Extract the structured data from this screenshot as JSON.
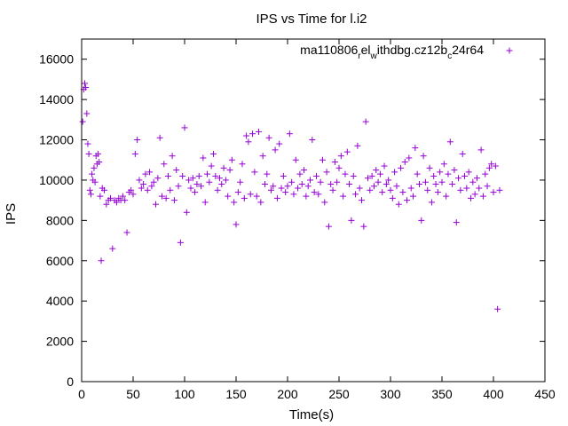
{
  "chart_data": {
    "type": "scatter",
    "title": "IPS vs Time for l.i2",
    "xlabel": "Time(s)",
    "ylabel": "IPS",
    "xlim": [
      0,
      450
    ],
    "ylim": [
      0,
      17000
    ],
    "x_ticks": [
      0,
      50,
      100,
      150,
      200,
      250,
      300,
      350,
      400,
      450
    ],
    "y_ticks": [
      0,
      2000,
      4000,
      6000,
      8000,
      10000,
      12000,
      14000,
      16000
    ],
    "x_tick_labels": [
      "0",
      "50",
      "100",
      "150",
      "200",
      "250",
      "300",
      "350",
      "400",
      "450"
    ],
    "y_tick_labels": [
      "0",
      "2000",
      "4000",
      "6000",
      "8000",
      "10000",
      "12000",
      "14000",
      "16000"
    ],
    "grid": false,
    "legend_position": "top-right",
    "legend": {
      "base": "ma110806",
      "sub1": "r",
      "mid1": "el",
      "sub2": "w",
      "mid2": "ithdbg.cz12b",
      "sub3": "c",
      "tail": "24r64"
    },
    "series": [
      {
        "color": "#9400d3",
        "marker": "plus",
        "points": [
          [
            1,
            12900
          ],
          [
            2,
            14500
          ],
          [
            3,
            14800
          ],
          [
            4,
            14600
          ],
          [
            5,
            13300
          ],
          [
            6,
            11800
          ],
          [
            7,
            11300
          ],
          [
            8,
            9500
          ],
          [
            9,
            9300
          ],
          [
            10,
            10300
          ],
          [
            11,
            10000
          ],
          [
            12,
            10600
          ],
          [
            13,
            9900
          ],
          [
            14,
            11200
          ],
          [
            15,
            10800
          ],
          [
            16,
            11300
          ],
          [
            17,
            10900
          ],
          [
            18,
            9200
          ],
          [
            19,
            6000
          ],
          [
            20,
            9600
          ],
          [
            22,
            9500
          ],
          [
            24,
            8800
          ],
          [
            26,
            9000
          ],
          [
            28,
            9100
          ],
          [
            30,
            6600
          ],
          [
            32,
            9000
          ],
          [
            34,
            8900
          ],
          [
            36,
            9100
          ],
          [
            38,
            9000
          ],
          [
            40,
            9200
          ],
          [
            42,
            9000
          ],
          [
            44,
            7400
          ],
          [
            46,
            9400
          ],
          [
            48,
            9500
          ],
          [
            50,
            9300
          ],
          [
            52,
            11300
          ],
          [
            54,
            12000
          ],
          [
            56,
            10000
          ],
          [
            58,
            9600
          ],
          [
            60,
            9800
          ],
          [
            62,
            10300
          ],
          [
            64,
            9500
          ],
          [
            66,
            10400
          ],
          [
            68,
            9700
          ],
          [
            70,
            9900
          ],
          [
            72,
            8800
          ],
          [
            74,
            10100
          ],
          [
            76,
            12100
          ],
          [
            78,
            9200
          ],
          [
            80,
            10800
          ],
          [
            82,
            9100
          ],
          [
            84,
            10200
          ],
          [
            86,
            9500
          ],
          [
            88,
            11200
          ],
          [
            90,
            9000
          ],
          [
            92,
            10500
          ],
          [
            94,
            9700
          ],
          [
            96,
            6900
          ],
          [
            98,
            10200
          ],
          [
            100,
            12600
          ],
          [
            102,
            8400
          ],
          [
            104,
            10000
          ],
          [
            106,
            9600
          ],
          [
            108,
            10100
          ],
          [
            110,
            9400
          ],
          [
            112,
            9800
          ],
          [
            114,
            10200
          ],
          [
            116,
            9700
          ],
          [
            118,
            11100
          ],
          [
            120,
            8900
          ],
          [
            122,
            10300
          ],
          [
            124,
            9900
          ],
          [
            126,
            10700
          ],
          [
            128,
            11300
          ],
          [
            130,
            10200
          ],
          [
            132,
            9500
          ],
          [
            134,
            10100
          ],
          [
            136,
            9800
          ],
          [
            138,
            10600
          ],
          [
            140,
            10000
          ],
          [
            142,
            9200
          ],
          [
            144,
            10500
          ],
          [
            146,
            11000
          ],
          [
            148,
            8900
          ],
          [
            150,
            7800
          ],
          [
            152,
            9400
          ],
          [
            154,
            9900
          ],
          [
            156,
            10800
          ],
          [
            158,
            9100
          ],
          [
            160,
            12200
          ],
          [
            162,
            11900
          ],
          [
            164,
            9300
          ],
          [
            166,
            12300
          ],
          [
            168,
            10400
          ],
          [
            170,
            9200
          ],
          [
            172,
            12400
          ],
          [
            174,
            8900
          ],
          [
            176,
            11200
          ],
          [
            178,
            9800
          ],
          [
            180,
            10300
          ],
          [
            182,
            12100
          ],
          [
            184,
            9500
          ],
          [
            186,
            9700
          ],
          [
            188,
            11500
          ],
          [
            190,
            9100
          ],
          [
            192,
            11800
          ],
          [
            194,
            9600
          ],
          [
            196,
            10200
          ],
          [
            198,
            9400
          ],
          [
            200,
            9700
          ],
          [
            202,
            12300
          ],
          [
            204,
            9900
          ],
          [
            206,
            9300
          ],
          [
            208,
            11000
          ],
          [
            210,
            9600
          ],
          [
            212,
            10300
          ],
          [
            214,
            9800
          ],
          [
            216,
            10500
          ],
          [
            218,
            9200
          ],
          [
            220,
            9700
          ],
          [
            222,
            10000
          ],
          [
            224,
            12000
          ],
          [
            226,
            9400
          ],
          [
            228,
            10200
          ],
          [
            230,
            9300
          ],
          [
            232,
            9900
          ],
          [
            234,
            11000
          ],
          [
            236,
            8900
          ],
          [
            238,
            10400
          ],
          [
            240,
            7700
          ],
          [
            242,
            9800
          ],
          [
            244,
            9500
          ],
          [
            246,
            10900
          ],
          [
            248,
            9900
          ],
          [
            250,
            10600
          ],
          [
            252,
            11200
          ],
          [
            254,
            9200
          ],
          [
            256,
            10300
          ],
          [
            258,
            11400
          ],
          [
            260,
            9800
          ],
          [
            262,
            8000
          ],
          [
            264,
            10200
          ],
          [
            266,
            9300
          ],
          [
            268,
            11700
          ],
          [
            270,
            9600
          ],
          [
            272,
            9000
          ],
          [
            274,
            7700
          ],
          [
            276,
            12900
          ],
          [
            278,
            10100
          ],
          [
            280,
            9500
          ],
          [
            282,
            10200
          ],
          [
            284,
            9700
          ],
          [
            286,
            10500
          ],
          [
            288,
            9900
          ],
          [
            290,
            10300
          ],
          [
            292,
            9400
          ],
          [
            294,
            10700
          ],
          [
            296,
            9800
          ],
          [
            298,
            10000
          ],
          [
            300,
            9500
          ],
          [
            302,
            9100
          ],
          [
            304,
            10400
          ],
          [
            306,
            9700
          ],
          [
            308,
            8800
          ],
          [
            310,
            10600
          ],
          [
            312,
            9400
          ],
          [
            314,
            10900
          ],
          [
            316,
            9000
          ],
          [
            318,
            11100
          ],
          [
            320,
            9600
          ],
          [
            322,
            9200
          ],
          [
            324,
            11600
          ],
          [
            326,
            10300
          ],
          [
            328,
            9800
          ],
          [
            330,
            8000
          ],
          [
            332,
            11200
          ],
          [
            334,
            9900
          ],
          [
            336,
            9500
          ],
          [
            338,
            10600
          ],
          [
            340,
            8900
          ],
          [
            342,
            10200
          ],
          [
            344,
            9800
          ],
          [
            346,
            9400
          ],
          [
            348,
            10400
          ],
          [
            350,
            9900
          ],
          [
            352,
            10800
          ],
          [
            354,
            9200
          ],
          [
            356,
            10300
          ],
          [
            358,
            11900
          ],
          [
            360,
            9800
          ],
          [
            362,
            10500
          ],
          [
            364,
            7900
          ],
          [
            366,
            10100
          ],
          [
            368,
            9500
          ],
          [
            370,
            11300
          ],
          [
            372,
            10200
          ],
          [
            374,
            9600
          ],
          [
            376,
            10400
          ],
          [
            378,
            9100
          ],
          [
            380,
            9900
          ],
          [
            382,
            9300
          ],
          [
            384,
            10100
          ],
          [
            386,
            9600
          ],
          [
            388,
            11500
          ],
          [
            390,
            9200
          ],
          [
            392,
            10300
          ],
          [
            394,
            9700
          ],
          [
            396,
            10600
          ],
          [
            398,
            10800
          ],
          [
            400,
            9400
          ],
          [
            402,
            10700
          ],
          [
            404,
            3600
          ],
          [
            406,
            9500
          ]
        ]
      }
    ]
  }
}
